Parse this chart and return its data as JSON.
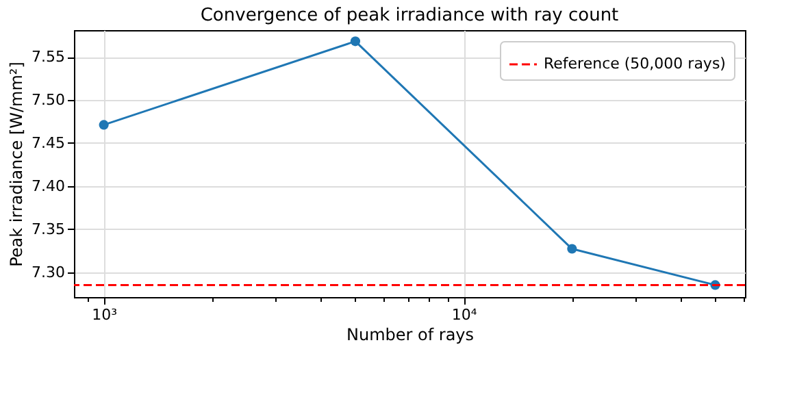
{
  "chart_data": {
    "type": "line",
    "title": "Convergence of peak irradiance with ray count",
    "xlabel": "Number of rays",
    "ylabel": "Peak irradiance [W/mm²]",
    "x": [
      1000,
      5000,
      20000,
      50000
    ],
    "series": [
      {
        "color": "#1f77b4",
        "values": [
          7.471,
          7.568,
          7.327,
          7.285
        ]
      }
    ],
    "marker": "circle",
    "line_style": "solid",
    "log": "x",
    "xlim": [
      826,
      60500
    ],
    "xticks": [
      {
        "value": 900,
        "label": null
      },
      {
        "value": 1000,
        "label": "10³"
      },
      {
        "value": 2000,
        "label": null
      },
      {
        "value": 3000,
        "label": null
      },
      {
        "value": 4000,
        "label": null
      },
      {
        "value": 5000,
        "label": null
      },
      {
        "value": 6000,
        "label": null
      },
      {
        "value": 7000,
        "label": null
      },
      {
        "value": 8000,
        "label": null
      },
      {
        "value": 9000,
        "label": null
      },
      {
        "value": 10000,
        "label": "10⁴"
      },
      {
        "value": 20000,
        "label": null
      },
      {
        "value": 30000,
        "label": null
      },
      {
        "value": 40000,
        "label": null
      },
      {
        "value": 50000,
        "label": null
      },
      {
        "value": 60000,
        "label": null
      }
    ],
    "ylim": [
      7.271,
      7.581
    ],
    "yticks": [
      {
        "value": 7.3,
        "label": "7.30"
      },
      7.35,
      {
        "value": 7.4,
        "label": "7.40"
      },
      7.45,
      {
        "value": 7.5,
        "label": "7.50"
      },
      7.55
    ],
    "ref_lines": [
      {
        "axis": "y",
        "value": 7.285,
        "label": "Reference (50,000 rays)",
        "color": "#ff0000",
        "line_style": "dashed"
      }
    ],
    "grid": true,
    "legend": "top right"
  }
}
